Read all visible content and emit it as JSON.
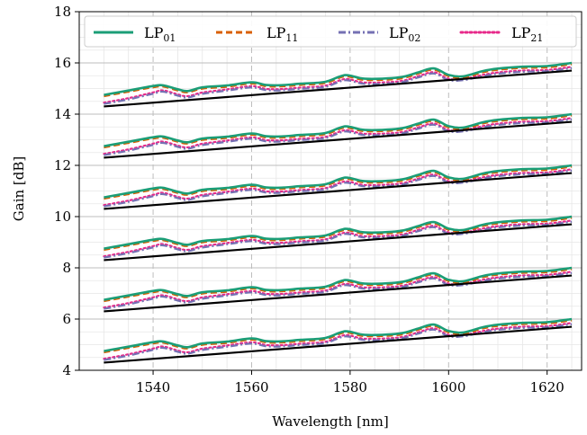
{
  "chart_data": {
    "type": "line",
    "xlabel": "Wavelength [nm]",
    "ylabel": "Gain [dB]",
    "xlim": [
      1525,
      1627
    ],
    "ylim": [
      4,
      18
    ],
    "xticks": [
      1540,
      1560,
      1580,
      1600,
      1620
    ],
    "yticks": [
      4,
      6,
      8,
      10,
      12,
      14,
      16,
      18
    ],
    "grid": true,
    "legend_position": "top",
    "legend_columns": 4,
    "x": [
      1530,
      1535,
      1540,
      1542,
      1545,
      1547,
      1550,
      1555,
      1560,
      1563,
      1566,
      1570,
      1575,
      1579,
      1583,
      1590,
      1594,
      1597,
      1600,
      1603,
      1607,
      1610,
      1615,
      1620,
      1625
    ],
    "mode_offsets": {
      "LP01": [
        0.45,
        0.55,
        0.65,
        0.65,
        0.45,
        0.35,
        0.45,
        0.45,
        0.5,
        0.35,
        0.3,
        0.3,
        0.3,
        0.5,
        0.3,
        0.25,
        0.4,
        0.5,
        0.2,
        0.1,
        0.25,
        0.3,
        0.3,
        0.25,
        0.3
      ],
      "LP11": [
        0.4,
        0.5,
        0.6,
        0.6,
        0.4,
        0.3,
        0.4,
        0.4,
        0.45,
        0.3,
        0.25,
        0.25,
        0.25,
        0.45,
        0.25,
        0.2,
        0.35,
        0.45,
        0.15,
        0.05,
        0.2,
        0.25,
        0.25,
        0.2,
        0.25
      ],
      "LP02": [
        0.1,
        0.2,
        0.35,
        0.4,
        0.2,
        0.1,
        0.2,
        0.25,
        0.3,
        0.15,
        0.1,
        0.1,
        0.1,
        0.3,
        0.1,
        0.05,
        0.2,
        0.3,
        0.0,
        -0.05,
        0.05,
        0.1,
        0.1,
        0.05,
        0.1
      ],
      "LP21": [
        0.15,
        0.25,
        0.4,
        0.45,
        0.25,
        0.15,
        0.25,
        0.3,
        0.35,
        0.2,
        0.15,
        0.15,
        0.15,
        0.35,
        0.15,
        0.1,
        0.25,
        0.35,
        0.05,
        0.0,
        0.1,
        0.15,
        0.15,
        0.1,
        0.15
      ]
    },
    "groups": [
      {
        "reference_start": 14.3,
        "reference_end": 15.7
      },
      {
        "reference_start": 12.3,
        "reference_end": 13.7
      },
      {
        "reference_start": 10.3,
        "reference_end": 11.7
      },
      {
        "reference_start": 8.3,
        "reference_end": 9.7
      },
      {
        "reference_start": 6.3,
        "reference_end": 7.7
      },
      {
        "reference_start": 4.3,
        "reference_end": 5.7
      }
    ],
    "series": [
      {
        "key": "LP01",
        "name": "LP",
        "subscript": "01",
        "color": "#1b9e77",
        "style": "solid"
      },
      {
        "key": "LP11",
        "name": "LP",
        "subscript": "11",
        "color": "#d95f02",
        "style": "dashed"
      },
      {
        "key": "LP02",
        "name": "LP",
        "subscript": "02",
        "color": "#7570b3",
        "style": "dashdot"
      },
      {
        "key": "LP21",
        "name": "LP",
        "subscript": "21",
        "color": "#e7298a",
        "style": "dotted"
      }
    ],
    "reference_color": "#000000"
  }
}
